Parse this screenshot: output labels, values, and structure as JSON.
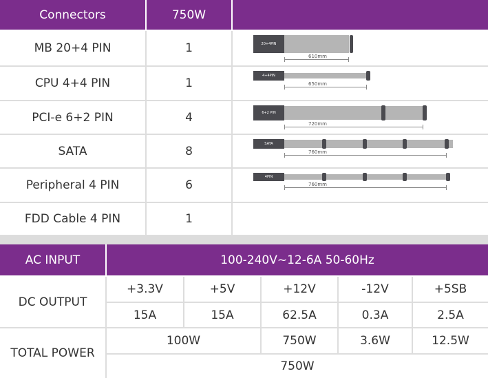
{
  "connectors_table": {
    "headers": [
      "Connectors",
      "750W",
      ""
    ],
    "rows": [
      {
        "name": "MB 20+4 PIN",
        "count": "1",
        "cable_label": "20+4PIN",
        "length": "610mm"
      },
      {
        "name": "CPU 4+4 PIN",
        "count": "1",
        "cable_label": "4+4PIN",
        "length": "650mm"
      },
      {
        "name": "PCI-e 6+2 PIN",
        "count": "4",
        "cable_label": "6+2 PIN",
        "length": "720mm"
      },
      {
        "name": "SATA",
        "count": "8",
        "cable_label": "SATA",
        "length": "760mm"
      },
      {
        "name": "Peripheral 4 PIN",
        "count": "6",
        "cable_label": "4PIN",
        "length": "760mm"
      },
      {
        "name": "FDD Cable 4 PIN",
        "count": "1"
      }
    ]
  },
  "power_table": {
    "ac_input_label": "AC INPUT",
    "ac_input_value": "100-240V~12-6A 50-60Hz",
    "dc_output_label": "DC OUTPUT",
    "rails": [
      "+3.3V",
      "+5V",
      "+12V",
      "-12V",
      "+5SB"
    ],
    "currents": [
      "15A",
      "15A",
      "62.5A",
      "0.3A",
      "2.5A"
    ],
    "total_power_label": "TOTAL POWER",
    "rail_power": {
      "combined_3v3_5v": "100W",
      "p12v": "750W",
      "n12v": "3.6W",
      "p5sb": "12.5W"
    },
    "total": "750W"
  },
  "colors": {
    "header": "#7b2d8c",
    "separator": "#dcdcdc"
  }
}
